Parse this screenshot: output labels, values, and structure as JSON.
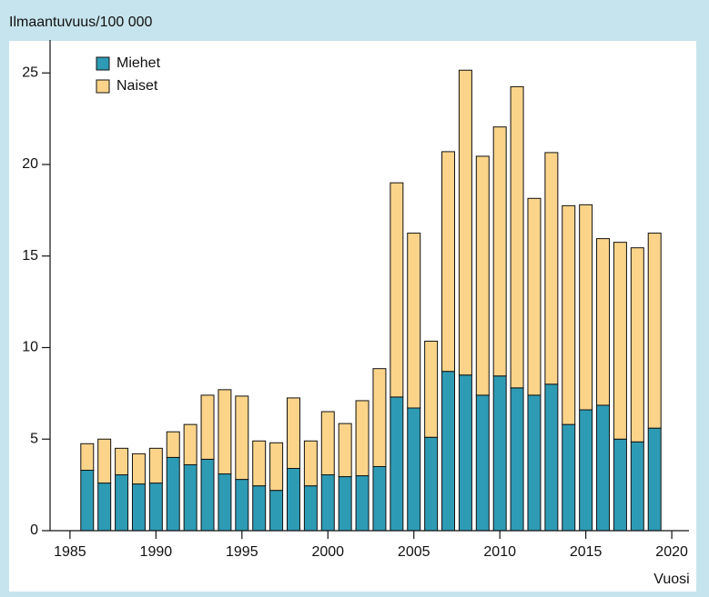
{
  "chart_data": {
    "type": "stacked-bar",
    "y_label": "Ilmaantuvuus/100 000",
    "x_label": "Vuosi",
    "x": [
      1986,
      1987,
      1988,
      1989,
      1990,
      1991,
      1992,
      1993,
      1994,
      1995,
      1996,
      1997,
      1998,
      1999,
      2000,
      2001,
      2002,
      2003,
      2004,
      2005,
      2006,
      2007,
      2008,
      2009,
      2010,
      2011,
      2012,
      2013,
      2014,
      2015,
      2016,
      2017,
      2018,
      2019
    ],
    "series": [
      {
        "name": "Miehet",
        "color": "#2e9bb5",
        "values": [
          3.3,
          2.6,
          3.05,
          2.55,
          2.6,
          4.0,
          3.6,
          3.9,
          3.1,
          2.8,
          2.45,
          2.2,
          3.4,
          2.45,
          3.05,
          2.95,
          3.0,
          3.5,
          7.3,
          6.7,
          5.1,
          8.7,
          8.5,
          7.4,
          8.45,
          7.8,
          7.4,
          8.0,
          5.8,
          6.6,
          6.85,
          5.0,
          4.85,
          5.6
        ]
      },
      {
        "name": "Naiset",
        "color": "#fbd48a",
        "values": [
          1.45,
          2.4,
          1.45,
          1.65,
          1.9,
          1.4,
          2.2,
          3.5,
          4.6,
          4.55,
          2.45,
          2.6,
          3.85,
          2.45,
          3.45,
          2.9,
          4.1,
          5.35,
          11.7,
          9.55,
          5.25,
          12.0,
          16.65,
          13.05,
          13.6,
          16.45,
          10.75,
          12.65,
          11.95,
          11.2,
          9.1,
          10.75,
          10.6,
          10.65
        ]
      }
    ],
    "xlim": [
      1984,
      2021
    ],
    "xticks": [
      1985,
      1990,
      1995,
      2000,
      2005,
      2010,
      2015,
      2020
    ],
    "ylim": [
      0,
      26.8
    ],
    "yticks": [
      0,
      5,
      10,
      15,
      20,
      25
    ],
    "legend": "top-left"
  }
}
